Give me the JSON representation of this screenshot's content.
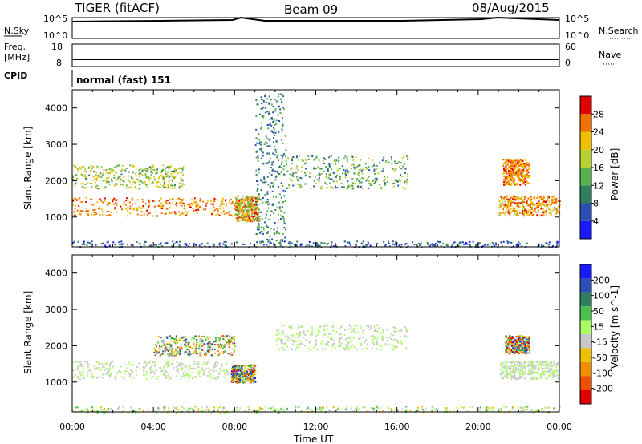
{
  "header": {
    "title": "TIGER (fitACF)",
    "beam": "Beam 09",
    "date": "08/Aug/2015"
  },
  "noise_panel": {
    "left_label": "N.Sky",
    "left_ticks": [
      "10^5",
      "10^0"
    ],
    "right_ticks": [
      "10^5",
      "10^0"
    ],
    "right_label": "N.Search"
  },
  "freq_panel": {
    "left_label_line1": "Freq.",
    "left_label_line2": "[MHz]",
    "left_ticks": [
      "18",
      "8"
    ],
    "right_ticks": [
      "60",
      "0"
    ],
    "right_label": "Nave"
  },
  "cpid_panel": {
    "label": "CPID",
    "text": "normal (fast) 151"
  },
  "x_axis": {
    "label": "Time UT",
    "ticks": [
      "00:00",
      "04:00",
      "08:00",
      "12:00",
      "16:00",
      "20:00",
      "00:00"
    ]
  },
  "chart_data": [
    {
      "type": "heatmap",
      "title": "",
      "xlabel": "Time UT",
      "ylabel": "Slant Range [km]",
      "x_ticks": [
        "00:00",
        "04:00",
        "08:00",
        "12:00",
        "16:00",
        "20:00",
        "00:00"
      ],
      "y_ticks": [
        1000,
        2000,
        3000,
        4000
      ],
      "xlim": [
        0,
        24
      ],
      "ylim": [
        180,
        4500
      ],
      "colorbar": {
        "label": "Power [dB]",
        "ticks": [
          4,
          8,
          12,
          16,
          20,
          24,
          28
        ],
        "range": [
          0,
          32
        ],
        "colors": [
          "#1a1aff",
          "#2b4fb5",
          "#2f7f5f",
          "#58b050",
          "#b8d030",
          "#f0c000",
          "#f07000",
          "#e00000"
        ]
      },
      "scatter_regions": [
        {
          "t": [
            0.0,
            8.5
          ],
          "r": [
            1050,
            1550
          ],
          "values": [
            20,
            30
          ]
        },
        {
          "t": [
            0.0,
            5.5
          ],
          "r": [
            1800,
            2450
          ],
          "values": [
            10,
            24
          ]
        },
        {
          "t": [
            8.0,
            9.2
          ],
          "r": [
            900,
            1600
          ],
          "values": [
            12,
            30
          ]
        },
        {
          "t": [
            9.0,
            10.5
          ],
          "r": [
            300,
            4400
          ],
          "values": [
            4,
            16
          ]
        },
        {
          "t": [
            10.5,
            16.5
          ],
          "r": [
            1800,
            2700
          ],
          "values": [
            6,
            20
          ]
        },
        {
          "t": [
            21.0,
            24.0
          ],
          "r": [
            1050,
            1600
          ],
          "values": [
            18,
            30
          ]
        },
        {
          "t": [
            21.2,
            22.5
          ],
          "r": [
            1900,
            2600
          ],
          "values": [
            20,
            30
          ]
        },
        {
          "t": [
            0.0,
            24.0
          ],
          "r": [
            180,
            350
          ],
          "values": [
            2,
            12
          ]
        }
      ]
    },
    {
      "type": "heatmap",
      "title": "",
      "xlabel": "Time UT",
      "ylabel": "Slant Range [km]",
      "x_ticks": [
        "00:00",
        "04:00",
        "08:00",
        "12:00",
        "16:00",
        "20:00",
        "00:00"
      ],
      "y_ticks": [
        1000,
        2000,
        3000,
        4000
      ],
      "xlim": [
        0,
        24
      ],
      "ylim": [
        180,
        4500
      ],
      "colorbar": {
        "label": "Velocity [m s^-1]",
        "ticks": [
          200,
          100,
          50,
          15,
          -15,
          -50,
          -100,
          -200
        ],
        "colors": [
          "#1a1aff",
          "#2b4fb5",
          "#2f7f5f",
          "#4cbf4c",
          "#aaff66",
          "#c8c8c8",
          "#f0c000",
          "#f09000",
          "#f05000",
          "#e00000"
        ]
      },
      "scatter_regions": [
        {
          "t": [
            0.0,
            8.2
          ],
          "r": [
            1100,
            1600
          ],
          "values": [
            -10,
            10
          ]
        },
        {
          "t": [
            4.0,
            8.0
          ],
          "r": [
            1750,
            2300
          ],
          "values": [
            -200,
            200
          ]
        },
        {
          "t": [
            7.8,
            9.0
          ],
          "r": [
            1000,
            1500
          ],
          "values": [
            -250,
            250
          ]
        },
        {
          "t": [
            10.0,
            16.5
          ],
          "r": [
            1900,
            2600
          ],
          "values": [
            -30,
            40
          ]
        },
        {
          "t": [
            21.3,
            22.5
          ],
          "r": [
            1800,
            2300
          ],
          "values": [
            -250,
            250
          ]
        },
        {
          "t": [
            21.0,
            24.0
          ],
          "r": [
            1100,
            1600
          ],
          "values": [
            -10,
            10
          ]
        },
        {
          "t": [
            0.0,
            24.0
          ],
          "r": [
            180,
            350
          ],
          "values": [
            -100,
            100
          ]
        }
      ]
    }
  ]
}
